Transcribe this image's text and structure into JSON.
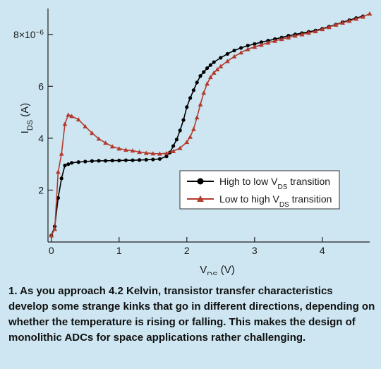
{
  "chart_data": {
    "type": "line",
    "xlabel_main": "V",
    "xlabel_sub": "DS",
    "xlabel_unit": " (V)",
    "ylabel_main": "I",
    "ylabel_sub": "DS",
    "ylabel_unit": " (A)",
    "xlim": [
      -0.05,
      4.7
    ],
    "ylim": [
      0,
      9
    ],
    "x_ticks": [
      {
        "value": 0,
        "label": "0"
      },
      {
        "value": 1,
        "label": "1"
      },
      {
        "value": 2,
        "label": "2"
      },
      {
        "value": 3,
        "label": "3"
      },
      {
        "value": 4,
        "label": "4"
      }
    ],
    "y_ticks": [
      {
        "value": 2,
        "label": "2"
      },
      {
        "value": 4,
        "label": "4"
      },
      {
        "value": 6,
        "label": "6"
      },
      {
        "value": 8,
        "label": "8×10",
        "sup": "−6"
      }
    ],
    "legend_position": "center-right",
    "series": [
      {
        "name_main": "High to low V",
        "name_sub": "DS",
        "name_end": " transition",
        "color": "#000000",
        "marker": "circle",
        "x": [
          0.0,
          0.05,
          0.1,
          0.15,
          0.2,
          0.25,
          0.3,
          0.4,
          0.5,
          0.6,
          0.7,
          0.8,
          0.9,
          1.0,
          1.1,
          1.2,
          1.3,
          1.4,
          1.5,
          1.6,
          1.7,
          1.75,
          1.8,
          1.85,
          1.9,
          1.95,
          2.0,
          2.05,
          2.1,
          2.15,
          2.2,
          2.25,
          2.3,
          2.35,
          2.4,
          2.5,
          2.6,
          2.7,
          2.8,
          2.9,
          3.0,
          3.1,
          3.2,
          3.3,
          3.4,
          3.5,
          3.6,
          3.7,
          3.8,
          3.9,
          4.0,
          4.1,
          4.2,
          4.3,
          4.4,
          4.5,
          4.6
        ],
        "y": [
          0.25,
          0.6,
          1.7,
          2.45,
          2.95,
          3.0,
          3.05,
          3.08,
          3.1,
          3.12,
          3.13,
          3.13,
          3.14,
          3.14,
          3.15,
          3.15,
          3.16,
          3.17,
          3.18,
          3.2,
          3.3,
          3.45,
          3.7,
          3.95,
          4.3,
          4.7,
          5.2,
          5.55,
          5.85,
          6.15,
          6.4,
          6.55,
          6.7,
          6.82,
          6.93,
          7.1,
          7.25,
          7.38,
          7.48,
          7.57,
          7.63,
          7.7,
          7.76,
          7.82,
          7.88,
          7.95,
          8.0,
          8.05,
          8.1,
          8.15,
          8.22,
          8.3,
          8.38,
          8.47,
          8.55,
          8.63,
          8.7
        ]
      },
      {
        "name_main": "Low to high V",
        "name_sub": "DS",
        "name_end": " transition",
        "color": "#b33a2e",
        "marker": "triangle",
        "x": [
          0.0,
          0.05,
          0.1,
          0.15,
          0.2,
          0.25,
          0.3,
          0.4,
          0.5,
          0.6,
          0.7,
          0.8,
          0.9,
          1.0,
          1.1,
          1.2,
          1.3,
          1.4,
          1.5,
          1.6,
          1.7,
          1.8,
          1.9,
          2.0,
          2.05,
          2.1,
          2.15,
          2.2,
          2.25,
          2.3,
          2.35,
          2.4,
          2.45,
          2.5,
          2.6,
          2.7,
          2.8,
          2.9,
          3.0,
          3.1,
          3.2,
          3.3,
          3.4,
          3.5,
          3.6,
          3.7,
          3.8,
          3.9,
          4.0,
          4.1,
          4.2,
          4.3,
          4.4,
          4.5,
          4.6,
          4.7
        ],
        "y": [
          0.25,
          0.5,
          2.7,
          3.4,
          4.55,
          4.9,
          4.85,
          4.72,
          4.45,
          4.2,
          3.98,
          3.82,
          3.68,
          3.6,
          3.55,
          3.52,
          3.47,
          3.43,
          3.41,
          3.4,
          3.42,
          3.5,
          3.62,
          3.85,
          4.05,
          4.35,
          4.8,
          5.3,
          5.75,
          6.1,
          6.35,
          6.52,
          6.65,
          6.77,
          6.97,
          7.15,
          7.3,
          7.43,
          7.52,
          7.6,
          7.68,
          7.75,
          7.82,
          7.88,
          7.95,
          8.0,
          8.06,
          8.12,
          8.2,
          8.28,
          8.37,
          8.45,
          8.52,
          8.6,
          8.68,
          8.8
        ]
      }
    ]
  },
  "caption": "1. As you approach 4.2 Kelvin, transistor transfer characteristics develop some strange kinks that go in different directions, depending on whether the temperature is rising or falling. This makes the design of monolithic ADCs for space applications rather challenging."
}
